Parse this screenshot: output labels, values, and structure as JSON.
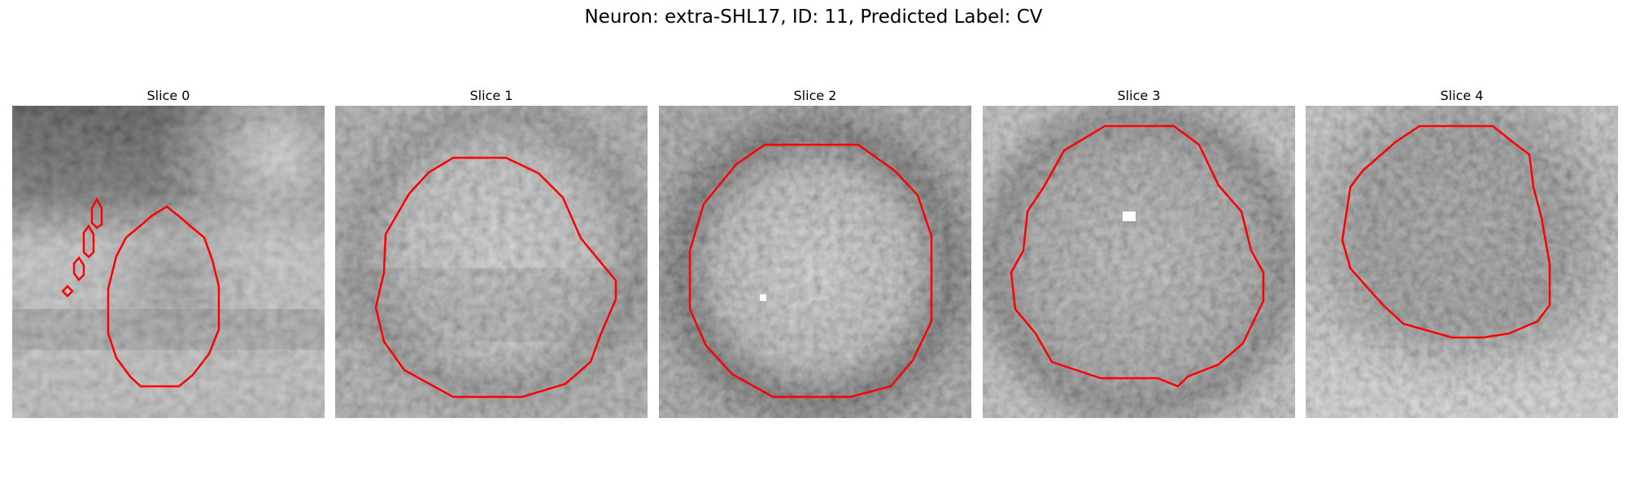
{
  "figure": {
    "title": "Neuron: extra-SHL17, ID: 11, Predicted Label: CV"
  },
  "contour_color": "#ff0000",
  "panels": [
    {
      "title": "Slice 0"
    },
    {
      "title": "Slice 1"
    },
    {
      "title": "Slice 2"
    },
    {
      "title": "Slice 3"
    },
    {
      "title": "Slice 4"
    }
  ]
}
